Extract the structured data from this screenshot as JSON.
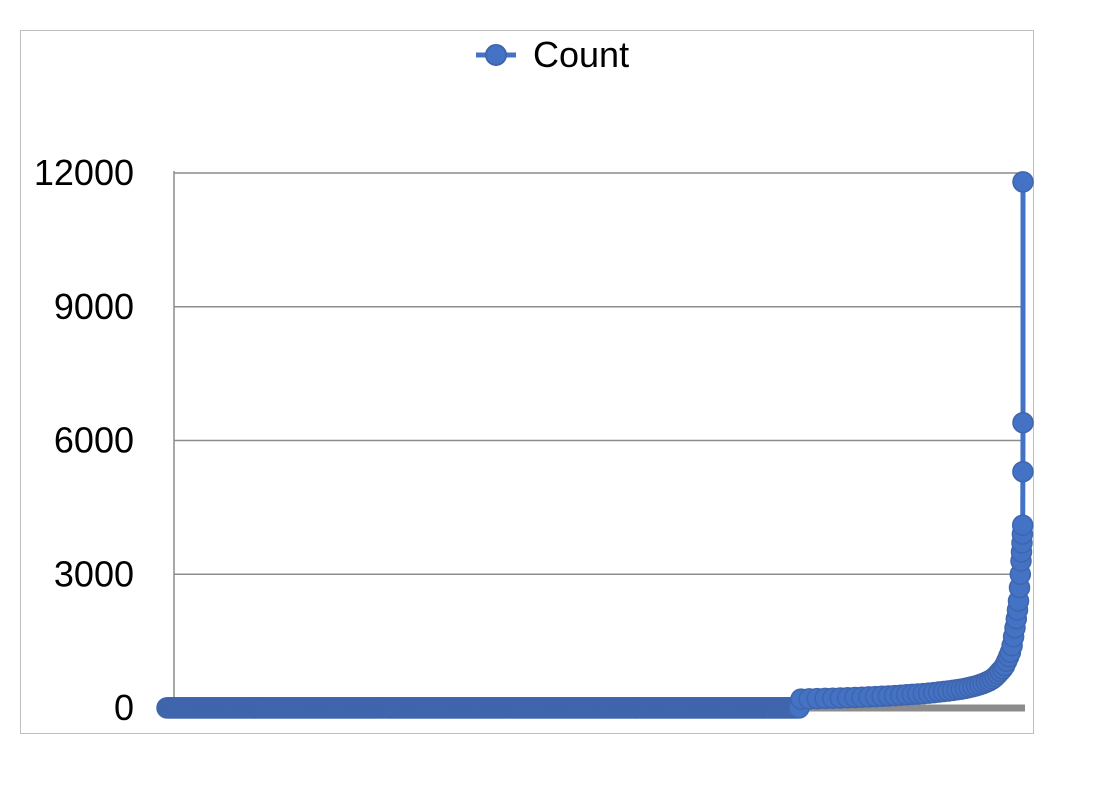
{
  "chart_data": {
    "type": "line",
    "legend": {
      "entries": [
        "Count"
      ],
      "position": "top"
    },
    "series": [
      {
        "name": "Count",
        "color": "#4472c4",
        "values_low_segment": {
          "count": 600,
          "value": 3
        },
        "values_rising_segment": [
          200,
          205,
          210,
          215,
          220,
          225,
          230,
          236,
          242,
          248,
          255,
          262,
          270,
          278,
          286,
          295,
          304,
          314,
          324,
          335,
          346,
          358,
          370,
          382,
          395,
          410,
          425,
          440,
          460,
          480,
          500,
          525,
          550,
          580,
          610,
          650,
          700,
          760,
          820,
          880,
          950,
          1050,
          1150,
          1250,
          1400,
          1600,
          1800,
          2000,
          2200,
          2400,
          2700,
          3000,
          3300,
          3500,
          3700,
          3900,
          4100,
          5300,
          6400,
          11800
        ]
      }
    ],
    "yticks": [
      "0",
      "3000",
      "6000",
      "9000",
      "12000"
    ],
    "ylim": [
      0,
      12000
    ],
    "grid": true,
    "axis_line_color": "#8c8c8c",
    "grid_color": "#8c8c8c"
  }
}
